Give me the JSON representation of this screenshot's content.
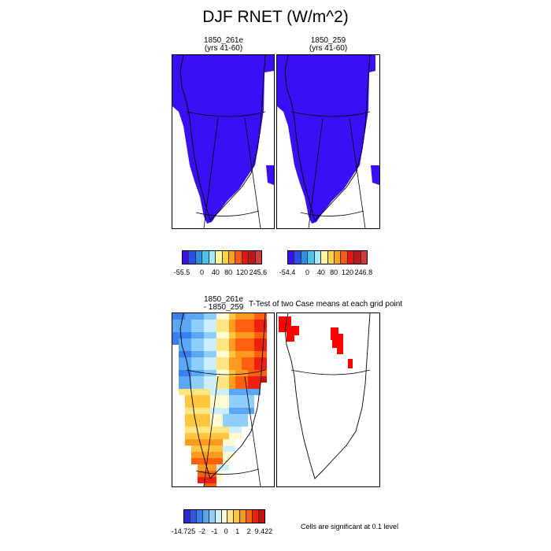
{
  "title": "DJF RNET (W/m^2)",
  "panels": {
    "a": {
      "line1": "1850_261e",
      "line2": "(yrs 41-60)"
    },
    "b": {
      "line1": "1850_259",
      "line2": "(yrs 41-60)"
    },
    "c": {
      "line1": "1850_261e",
      "line2": "- 1850_259"
    },
    "d": {
      "title": "T-Test of two Case means at each grid point"
    }
  },
  "colorbars": {
    "a": {
      "labels": [
        "-55.5",
        "0",
        "40",
        "80",
        "120",
        "245.6"
      ]
    },
    "b": {
      "labels": [
        "-54.4",
        "0",
        "40",
        "80",
        "120",
        "246.8"
      ]
    },
    "c": {
      "labels": [
        "-14.725",
        "-2",
        "-1",
        "0",
        "1",
        "2",
        "9.422"
      ]
    }
  },
  "colors": {
    "abs_fill": "#3b0ff5",
    "abs_edge": "#2f8ee6",
    "abs_scale": [
      "#3c0ff5",
      "#2a50e8",
      "#2f8ee6",
      "#45c4f0",
      "#a9e9f7",
      "#fff6a0",
      "#ffd24a",
      "#ffa020",
      "#ff5a10",
      "#e81410",
      "#b81a1a",
      "#d43a3a"
    ],
    "diff_scale": [
      "#2b2bd6",
      "#2f55e6",
      "#3a7ff0",
      "#5aa8f5",
      "#8fd0fa",
      "#cdeefb",
      "#fffbd2",
      "#ffe680",
      "#ffc640",
      "#ff9a20",
      "#ff6010",
      "#ee2010",
      "#c41010"
    ],
    "sig": "#ff0000"
  },
  "significance_note": "Cells are significant at 0.1 level"
}
